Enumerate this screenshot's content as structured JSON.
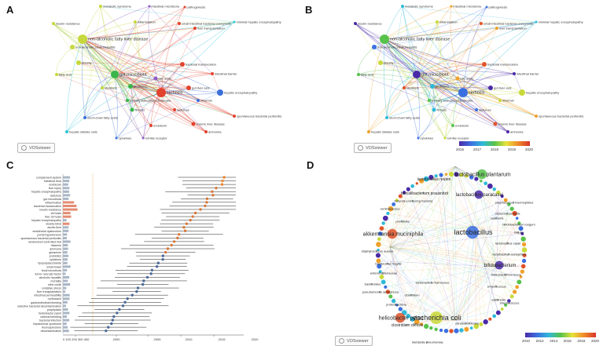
{
  "panels": {
    "a": {
      "letter": "A",
      "badge": "VOSviewer"
    },
    "b": {
      "letter": "B",
      "badge": "VOSviewer",
      "colorbar_ticks": [
        "2016",
        "2017",
        "2018",
        "2019",
        "2020"
      ]
    },
    "c": {
      "letter": "C",
      "axis_ticks": [
        "0 100 200 300 400",
        "2000",
        "2005",
        "2010",
        "2015",
        "2020"
      ]
    },
    "d": {
      "letter": "D",
      "badge": "VOSviewer",
      "colorbar_ticks": [
        "2010",
        "2012",
        "2014",
        "2016",
        "2018",
        "2020"
      ]
    }
  },
  "network_labels": [
    "metabolic syndrome",
    "intestinal microbiota",
    "pathogenesis",
    "inflammation",
    "insulin resistance",
    "non-alcoholic fatty liver disease",
    "small intestinal bacterial overgrowth",
    "minimal hepatic encephalopathy",
    "liver transplantation",
    "non-alcoholic steatohepatitis",
    "obesity",
    "gut microbiota",
    "fatty acid",
    "bacterial translocation",
    "probiotics",
    "bile acids",
    "cirrhosis",
    "hepatic encephalopathy",
    "gut-liver axis",
    "primary sclerosing cholangitis",
    "chronic liver disease",
    "short-chain fatty acids",
    "hepatic stellate cells",
    "cytokines",
    "toll-like receptor",
    "ammonia",
    "endotoxin",
    "steatosis",
    "fibrosis",
    "spontaneous bacterial peritonitis",
    "lactulose",
    "rifaximin",
    "intestinal barrier"
  ],
  "burst_terms": [
    "complement system",
    "intestinal flora",
    "endotoxin",
    "liver injury",
    "hepatic encephalopathy",
    "lactulose",
    "gut microbiota",
    "inflammation",
    "bacterial translocation",
    "insulin resistance",
    "cirrhosis",
    "liver cirrhosis",
    "hepatic encephalopathy",
    "double-blind",
    "ascitic fluid",
    "endothelial dysfunction",
    "portal hypertension",
    "spontaneous bacterial peritonitis",
    "randomized controlled trial",
    "rifaximin",
    "ammonia",
    "glutamine",
    "probiotics",
    "cytokines",
    "lipopolysaccharide",
    "small bowel",
    "fecal microbiota",
    "tumor necrosis factor",
    "alcoholic hepatitis",
    "mortality",
    "nitric oxide",
    "oxidative stress",
    "liver transplantation",
    "intestinal permeability",
    "norfloxacin",
    "gastrointestinal bleeding",
    "selective bacterial decontamination",
    "prophylaxis",
    "helicobacter pylori",
    "variceal bleeding",
    "bacterial infection",
    "hepatorenal syndrome",
    "fluoroquinolone",
    "decontamination"
  ],
  "species_labels": [
    "lactobacillus plantarum",
    "lactobacillus reuteri",
    "lactobacillus paracasei",
    "faecalibacterium prausnitzii",
    "butyrate-producing bacteria",
    "akkermansia muciniphila",
    "lactobacillus",
    "lactobacillus casei",
    "lactobacillus rhamnosus",
    "bifidobacterium",
    "enterococcus",
    "escherichia coli",
    "helicobacter pylori",
    "clostridium difficile",
    "candida albicans",
    "klebsiella pneumoniae",
    "bacteroides fragilis",
    "enterobacteriaceae",
    "streptococcus thermophilus",
    "lactobacillus acidophilus",
    "bifidobacterium longum",
    "bifidobacterium breve",
    "lactococcus lactis",
    "staphylococcus aureus",
    "pseudomonas aeruginosa",
    "proteobacteria",
    "prevotella",
    "roseburia",
    "blautia",
    "ruminococcus",
    "veillonella",
    "streptococcus",
    "bacteroides",
    "clostridium"
  ],
  "palette": {
    "yellow_green": "#c6d83e",
    "red": "#e2432e",
    "green": "#39b54a",
    "blue": "#3a6fd8",
    "purple": "#8d5bc6",
    "orange": "#f0862e",
    "cyan": "#2bc4d6",
    "bar_salmon": "#e48c72",
    "bar_gray": "#a9b6c6",
    "dot": "#4c6a9a"
  }
}
